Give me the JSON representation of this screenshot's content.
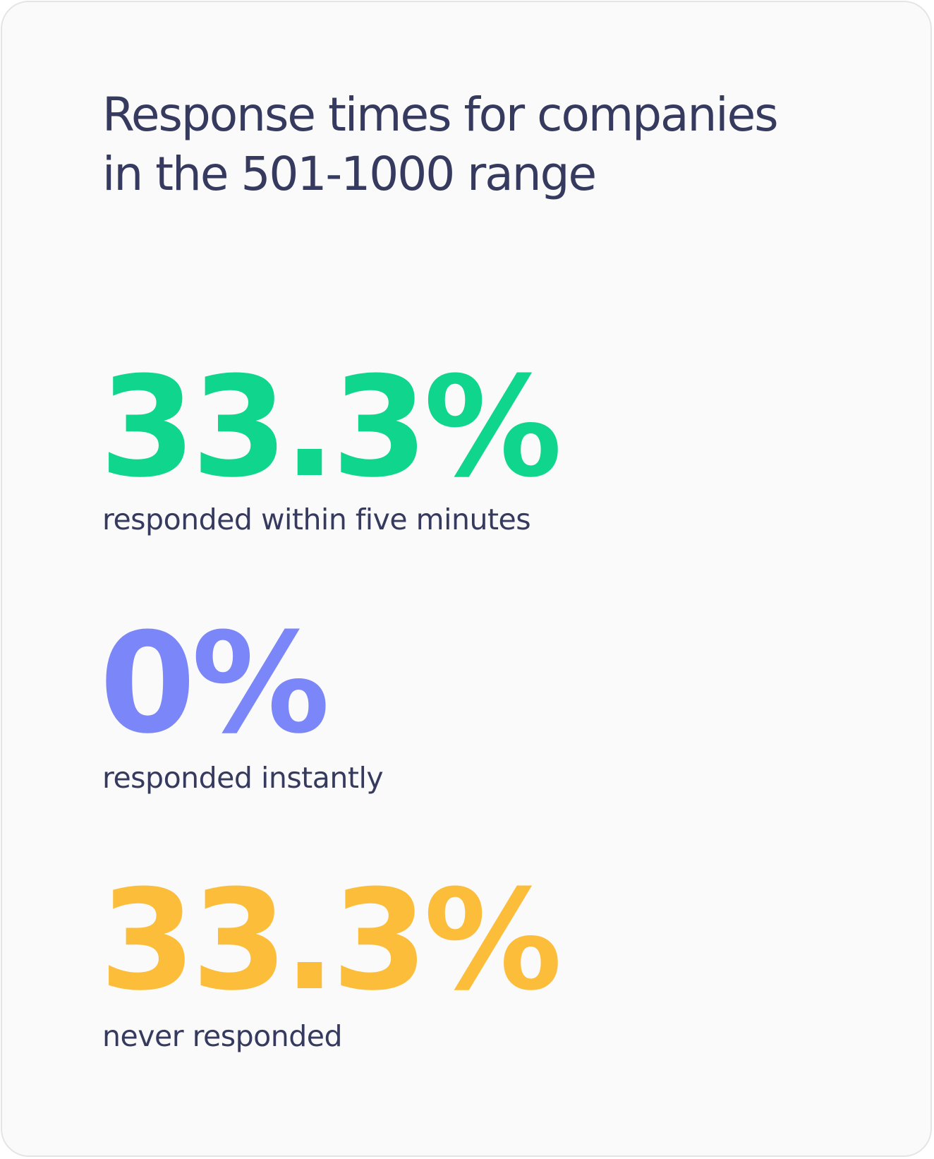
{
  "title": "Response times for companies in the 501-1000 range",
  "stats": [
    {
      "value": "33.3%",
      "label": "responded within five minutes",
      "color": "#0fd68c"
    },
    {
      "value": "0%",
      "label": "responded instantly",
      "color": "#7b86f8"
    },
    {
      "value": "33.3%",
      "label": "never responded",
      "color": "#fbbd3a"
    }
  ]
}
